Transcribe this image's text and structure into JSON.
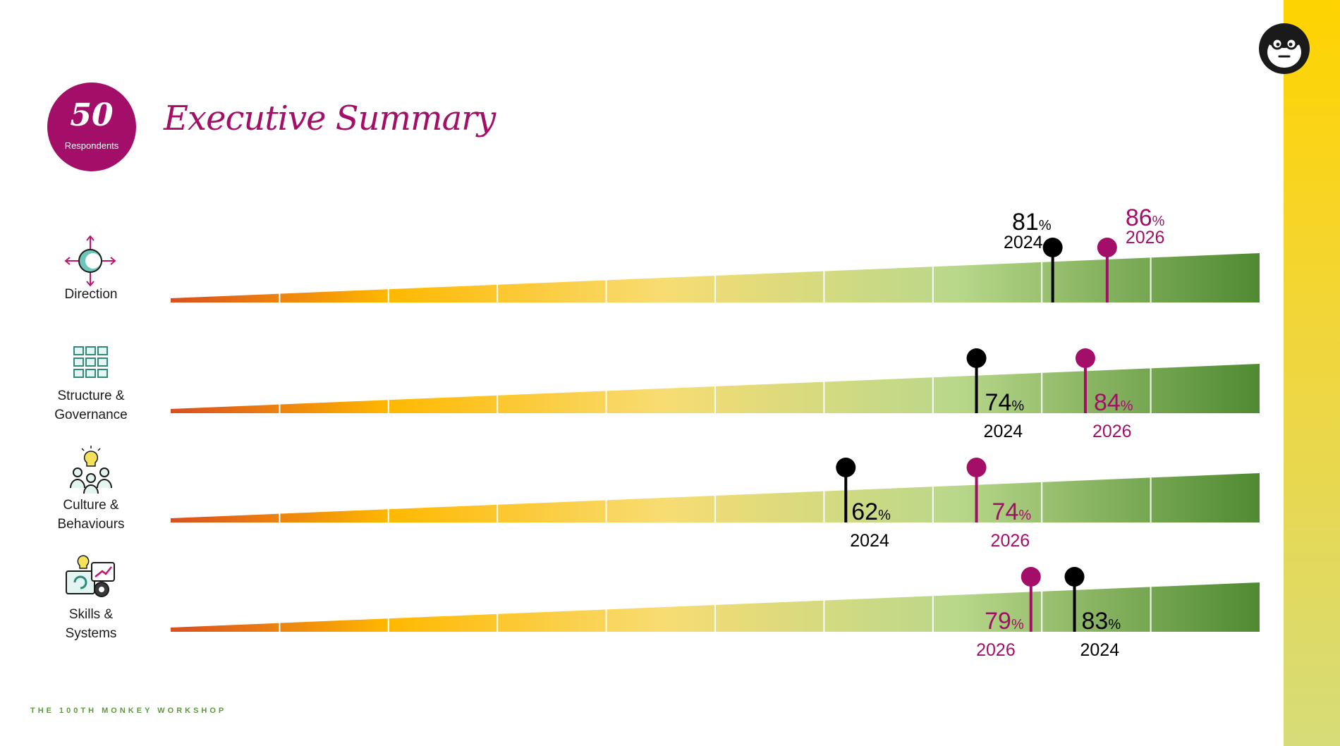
{
  "badge": {
    "number": "50",
    "label": "Respondents"
  },
  "title": "Executive Summary",
  "footer": "THE 100TH MONKEY WORKSHOP",
  "colors": {
    "y2024": "#000000",
    "y2026": "#a30f68",
    "accent": "#a30f68"
  },
  "categories": [
    {
      "line1": "Direction",
      "line2": "",
      "icon": "compass-arrows-icon"
    },
    {
      "line1": "Structure &",
      "line2": "Governance",
      "icon": "grid-blocks-icon"
    },
    {
      "line1": "Culture &",
      "line2": "Behaviours",
      "icon": "people-lightbulb-icon"
    },
    {
      "line1": "Skills &",
      "line2": "Systems",
      "icon": "skills-systems-icon"
    }
  ],
  "chart_data": {
    "type": "scatter",
    "title": "Executive Summary",
    "xlim": [
      0,
      100
    ],
    "grid_intervals": 10,
    "series": [
      {
        "name": "2024",
        "color": "#000000",
        "values": [
          81,
          74,
          62,
          83
        ]
      },
      {
        "name": "2026",
        "color": "#a30f68",
        "values": [
          86,
          84,
          74,
          79
        ]
      }
    ],
    "labels": [
      {
        "v24": "81",
        "v26": "86",
        "y24": "2024",
        "y26": "2026"
      },
      {
        "v24": "74",
        "v26": "84",
        "y24": "2024",
        "y26": "2026"
      },
      {
        "v24": "62",
        "v26": "74",
        "y24": "2024",
        "y26": "2026"
      },
      {
        "v24": "83",
        "v26": "79",
        "y24": "2024",
        "y26": "2026"
      }
    ],
    "percent_sign": "%"
  }
}
